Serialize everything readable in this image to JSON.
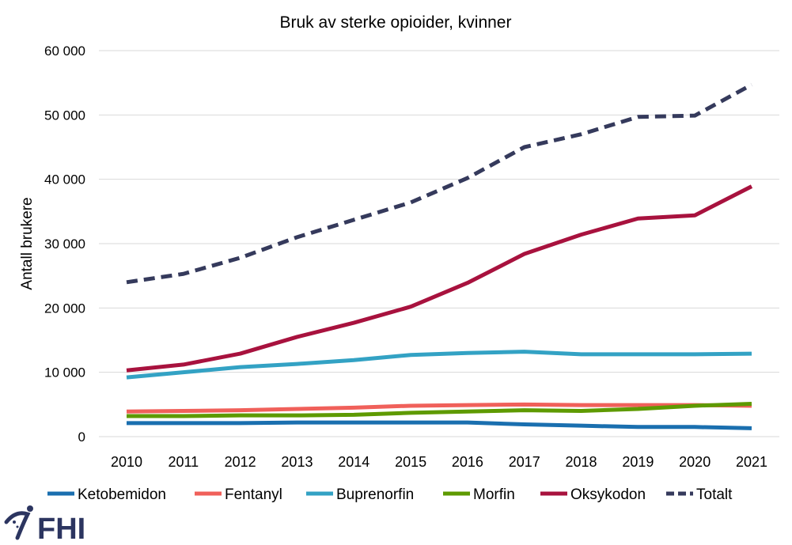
{
  "chart_data": {
    "type": "line",
    "title": "Bruk av sterke opioider, kvinner",
    "xlabel": "",
    "ylabel": "Antall brukere",
    "ylim": [
      0,
      60000
    ],
    "yticks": [
      0,
      10000,
      20000,
      30000,
      40000,
      50000,
      60000
    ],
    "ytick_labels": [
      "0",
      "10 000",
      "20 000",
      "30 000",
      "40 000",
      "50 000",
      "60 000"
    ],
    "grid": true,
    "legend_position": "bottom",
    "categories": [
      "2010",
      "2011",
      "2012",
      "2013",
      "2014",
      "2015",
      "2016",
      "2017",
      "2018",
      "2019",
      "2020",
      "2021"
    ],
    "series": [
      {
        "name": "Ketobemidon",
        "color": "#1a6faf",
        "dashed": false,
        "values": [
          2100,
          2100,
          2100,
          2200,
          2200,
          2200,
          2200,
          1900,
          1700,
          1500,
          1500,
          1300
        ]
      },
      {
        "name": "Fentanyl",
        "color": "#f0605a",
        "dashed": false,
        "values": [
          3900,
          4000,
          4100,
          4300,
          4500,
          4800,
          4900,
          5000,
          4900,
          4900,
          4900,
          4800
        ]
      },
      {
        "name": "Buprenorfin",
        "color": "#33a2c4",
        "dashed": false,
        "values": [
          9200,
          10000,
          10800,
          11300,
          11900,
          12700,
          13000,
          13200,
          12800,
          12800,
          12800,
          12900
        ]
      },
      {
        "name": "Morfin",
        "color": "#5e9a00",
        "dashed": false,
        "values": [
          3200,
          3200,
          3300,
          3300,
          3400,
          3700,
          3900,
          4100,
          4000,
          4300,
          4800,
          5100
        ]
      },
      {
        "name": "Oksykodon",
        "color": "#a8123e",
        "dashed": false,
        "values": [
          10300,
          11200,
          12900,
          15500,
          17700,
          20200,
          23900,
          28400,
          31400,
          33900,
          34400,
          38900
        ]
      },
      {
        "name": "Totalt",
        "color": "#353a5c",
        "dashed": true,
        "values": [
          24000,
          25300,
          27800,
          31000,
          33700,
          36400,
          40200,
          45000,
          47000,
          49700,
          49900,
          54700
        ]
      }
    ]
  },
  "logo": {
    "text": "FHI",
    "color": "#2c3560"
  }
}
